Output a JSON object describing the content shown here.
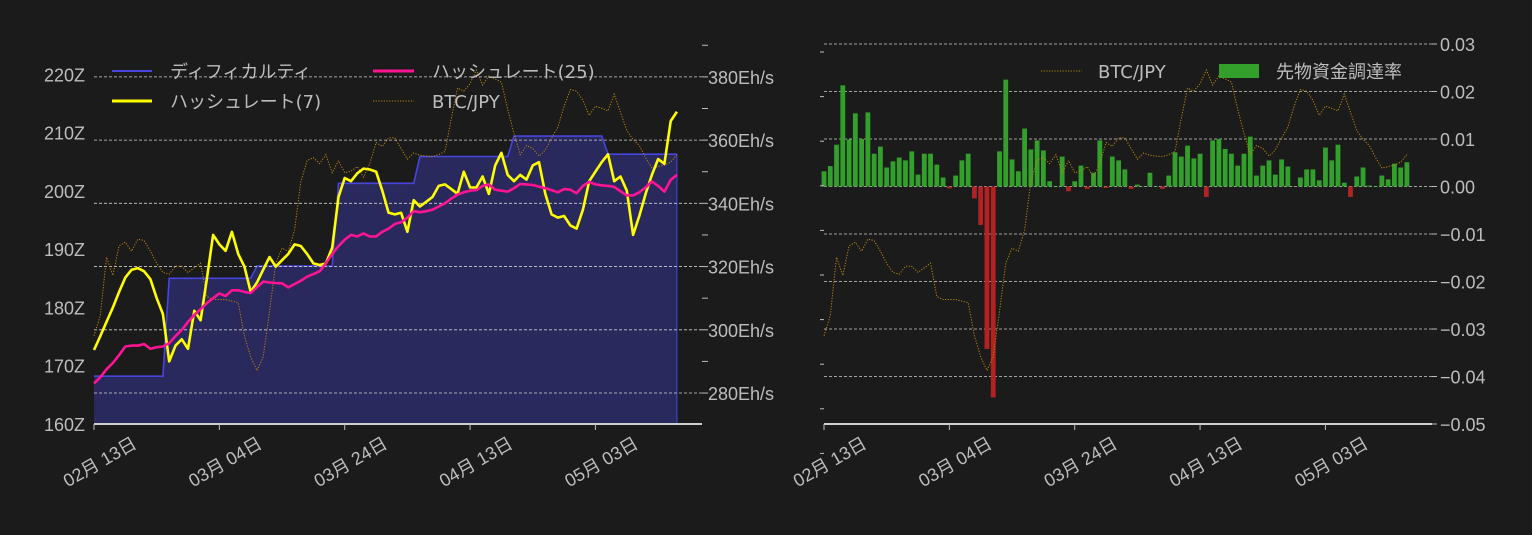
{
  "chart_data": [
    {
      "type": "line",
      "x": [
        "02-13",
        "02-14",
        "02-15",
        "02-16",
        "02-17",
        "02-18",
        "02-19",
        "02-20",
        "02-21",
        "02-22",
        "02-23",
        "02-24",
        "02-25",
        "02-26",
        "02-27",
        "02-28",
        "02-29",
        "03-01",
        "03-02",
        "03-03",
        "03-04",
        "03-05",
        "03-06",
        "03-07",
        "03-08",
        "03-09",
        "03-10",
        "03-11",
        "03-12",
        "03-13",
        "03-14",
        "03-15",
        "03-16",
        "03-17",
        "03-18",
        "03-19",
        "03-20",
        "03-21",
        "03-22",
        "03-23",
        "03-24",
        "03-25",
        "03-26",
        "03-27",
        "03-28",
        "03-29",
        "03-30",
        "03-31",
        "04-01",
        "04-02",
        "04-03",
        "04-04",
        "04-05",
        "04-06",
        "04-07",
        "04-08",
        "04-09",
        "04-10",
        "04-11",
        "04-12",
        "04-13",
        "04-14",
        "04-15",
        "04-16",
        "04-17",
        "04-18",
        "04-19",
        "04-20",
        "04-21",
        "04-22",
        "04-23",
        "04-24",
        "04-25",
        "04-26",
        "04-27",
        "04-28",
        "04-29",
        "04-30",
        "05-01",
        "05-02",
        "05-03",
        "05-04",
        "05-05",
        "05-06",
        "05-07",
        "05-08",
        "05-09",
        "05-10",
        "05-11",
        "05-12",
        "05-13",
        "05-14",
        "05-15",
        "05-16"
      ],
      "xlim": [
        "02-13",
        "05-20"
      ],
      "xticks": [
        {
          "date": "02-13",
          "label": "02月 13日"
        },
        {
          "date": "03-04",
          "label": "03月 04日"
        },
        {
          "date": "03-24",
          "label": "03月 24日"
        },
        {
          "date": "04-13",
          "label": "04月 13日"
        },
        {
          "date": "05-03",
          "label": "05月 03日"
        }
      ],
      "y_left": {
        "ylim": [
          160,
          225.2
        ],
        "ticks": [
          160,
          170,
          180,
          190,
          200,
          210,
          220
        ],
        "tick_labels": [
          "160Z",
          "170Z",
          "180Z",
          "190Z",
          "200Z",
          "210Z",
          "220Z"
        ]
      },
      "y_right": {
        "ylim": [
          270.2,
          390.4
        ],
        "ticks": [
          280,
          300,
          320,
          340,
          360,
          380
        ],
        "tick_labels": [
          "280Eh/s",
          "300Eh/s",
          "320Eh/s",
          "340Eh/s",
          "360Eh/s",
          "380Eh/s"
        ],
        "minor_step": 10
      },
      "y_hidden": {
        "ylim": [
          -17.2,
          108.6
        ]
      },
      "grid": "dashed, on right-axis ticks",
      "legend": "top-left, 2 columns",
      "series": [
        {
          "name": "ディフィカルティ",
          "axis": "left",
          "style": "filled-step",
          "color": "#4646dc",
          "fill": "#29295e",
          "values": [
            168.2,
            168.2,
            168.2,
            168.2,
            168.2,
            168.2,
            168.2,
            168.2,
            168.2,
            168.2,
            168.2,
            168.2,
            185,
            185,
            185,
            185,
            185,
            185,
            185,
            185,
            185,
            185,
            185,
            185,
            185,
            185,
            187.1,
            187.1,
            187.1,
            187.1,
            187.1,
            187.1,
            187.1,
            187.1,
            187.1,
            187.1,
            187.1,
            187.1,
            187.1,
            201.3,
            201.3,
            201.3,
            201.3,
            201.3,
            201.3,
            201.3,
            201.3,
            201.3,
            201.3,
            201.3,
            201.3,
            201.3,
            205.9,
            205.9,
            205.9,
            205.9,
            205.9,
            205.9,
            205.9,
            205.9,
            205.9,
            205.9,
            205.9,
            205.9,
            205.9,
            205.9,
            205.9,
            209.4,
            209.4,
            209.4,
            209.4,
            209.4,
            209.4,
            209.4,
            209.4,
            209.4,
            209.4,
            209.4,
            209.4,
            209.4,
            209.4,
            209.4,
            206.3,
            206.3,
            206.3,
            206.3,
            206.3,
            206.3,
            206.3,
            206.3,
            206.3,
            206.3,
            206.3,
            206.3
          ]
        },
        {
          "name": "ハッシュレート(25)",
          "axis": "right",
          "style": "line",
          "color": "#ff1493",
          "values": [
            283,
            285,
            287.5,
            289.5,
            292,
            294.7,
            295,
            295,
            295.5,
            294,
            294.5,
            294.7,
            295.8,
            298,
            300,
            302.5,
            304.7,
            306.5,
            308.4,
            310,
            311.5,
            310.7,
            312.5,
            312.5,
            312,
            311.6,
            313.5,
            315.2,
            315,
            314.8,
            314.7,
            313.4,
            314.5,
            315.5,
            316.8,
            317.6,
            318.5,
            321,
            324,
            326.5,
            328.5,
            330,
            329.5,
            330.5,
            329.5,
            329.5,
            331,
            332,
            333.5,
            334,
            335.5,
            337.5,
            337.2,
            337.5,
            338,
            339,
            340,
            341.5,
            342.8,
            343.5,
            344,
            344.2,
            345.5,
            346,
            344.3,
            344,
            343.7,
            344.8,
            346.1,
            346,
            345.8,
            345.3,
            344.8,
            344.2,
            343.5,
            344.5,
            344.3,
            343.2,
            345.5,
            346.8,
            346,
            345.7,
            345.5,
            345.2,
            343.8,
            342.5,
            342.5,
            343.5,
            345,
            346.9,
            345.5,
            343.7,
            347.4,
            349
          ]
        },
        {
          "name": "ハッシュレート(7)",
          "axis": "right",
          "style": "line",
          "color": "#ffff00",
          "values": [
            293.6,
            298,
            302.5,
            307,
            312,
            316.5,
            319,
            319.5,
            318.5,
            316,
            310,
            305,
            290,
            295,
            297,
            294,
            306,
            303,
            316,
            330,
            327,
            325,
            331,
            324,
            320,
            312,
            315,
            319,
            323,
            320,
            322,
            324,
            327,
            326.5,
            324,
            321,
            320.5,
            321,
            326,
            342,
            348,
            347,
            349.5,
            351,
            350.7,
            350,
            344,
            337,
            336.5,
            337,
            331,
            341,
            339,
            340.5,
            342,
            345.5,
            346,
            344.5,
            343,
            350,
            345,
            345,
            348.5,
            343,
            352,
            356,
            349,
            347,
            349,
            347.5,
            352,
            353,
            343,
            336.5,
            335.5,
            336,
            333,
            332,
            338,
            347,
            350,
            353,
            355.5,
            347,
            348.5,
            344,
            330,
            336,
            343,
            349,
            354,
            352.5,
            366,
            369
          ]
        },
        {
          "name": "BTC/JPY",
          "axis": "hidden",
          "style": "dotted",
          "color": "#b8860b",
          "values": [
            12,
            18.7,
            38,
            32,
            41.8,
            43,
            40,
            44,
            43.5,
            40,
            36,
            33,
            32.4,
            35,
            35,
            33,
            34.5,
            36,
            25,
            24,
            24,
            24,
            23.5,
            23,
            12,
            5,
            0.5,
            5,
            20,
            36,
            41,
            40,
            47,
            63,
            70,
            71,
            69,
            72,
            66,
            70,
            66,
            66.5,
            68,
            64.5,
            69,
            76,
            74.7,
            77.5,
            77.5,
            74,
            70.5,
            72.5,
            71.8,
            71.5,
            71.3,
            72,
            73,
            84,
            94,
            93,
            95.5,
            100,
            95,
            98,
            97,
            96,
            87,
            79,
            72,
            75,
            74,
            71.5,
            73.5,
            77.5,
            81,
            88,
            93.5,
            93,
            90,
            85,
            88,
            87.3,
            86.5,
            92,
            86,
            80,
            77,
            75,
            71,
            67.5,
            68,
            68.5,
            69.5,
            72
          ]
        }
      ]
    },
    {
      "type": "bar",
      "x": [
        "02-13",
        "02-14",
        "02-15",
        "02-16",
        "02-17",
        "02-18",
        "02-19",
        "02-20",
        "02-21",
        "02-22",
        "02-23",
        "02-24",
        "02-25",
        "02-26",
        "02-27",
        "02-28",
        "02-29",
        "03-01",
        "03-02",
        "03-03",
        "03-04",
        "03-05",
        "03-06",
        "03-07",
        "03-08",
        "03-09",
        "03-10",
        "03-11",
        "03-12",
        "03-13",
        "03-14",
        "03-15",
        "03-16",
        "03-17",
        "03-18",
        "03-19",
        "03-20",
        "03-21",
        "03-22",
        "03-23",
        "03-24",
        "03-25",
        "03-26",
        "03-27",
        "03-28",
        "03-29",
        "03-30",
        "03-31",
        "04-01",
        "04-02",
        "04-03",
        "04-04",
        "04-05",
        "04-06",
        "04-07",
        "04-08",
        "04-09",
        "04-10",
        "04-11",
        "04-12",
        "04-13",
        "04-14",
        "04-15",
        "04-16",
        "04-17",
        "04-18",
        "04-19",
        "04-20",
        "04-21",
        "04-22",
        "04-23",
        "04-24",
        "04-25",
        "04-26",
        "04-27",
        "04-28",
        "04-29",
        "04-30",
        "05-01",
        "05-02",
        "05-03",
        "05-04",
        "05-05",
        "05-06",
        "05-07",
        "05-08",
        "05-09",
        "05-10",
        "05-11",
        "05-12",
        "05-13",
        "05-14",
        "05-15",
        "05-16"
      ],
      "xlim": [
        "02-13",
        "05-20"
      ],
      "xticks": [
        {
          "date": "02-13",
          "label": "02月 13日"
        },
        {
          "date": "03-04",
          "label": "03月 04日"
        },
        {
          "date": "03-24",
          "label": "03月 24日"
        },
        {
          "date": "04-13",
          "label": "04月 13日"
        },
        {
          "date": "05-03",
          "label": "05月 03日"
        }
      ],
      "y_right": {
        "ylim": [
          -0.05,
          0.03
        ],
        "ticks": [
          0.03,
          0.02,
          0.01,
          0,
          -0.01,
          -0.02,
          -0.03,
          -0.04,
          -0.05
        ],
        "tick_labels": [
          "0.03",
          "0.02",
          "0.01",
          "0.00",
          "−0.01",
          "−0.02",
          "−0.03",
          "−0.04",
          "−0.05"
        ]
      },
      "y_hidden": {
        "ylim": [
          -17.2,
          108.6
        ]
      },
      "grid": "dashed horizontal",
      "legend": "top-right",
      "positive_color": "#33a02c",
      "negative_color": "#b22222",
      "series": [
        {
          "name": "先物資金調達率",
          "axis": "right",
          "style": "bar",
          "color": "#33a02c",
          "values": [
            0.0032,
            0.0043,
            0.0088,
            0.0213,
            0.0099,
            0.0154,
            0.01,
            0.0156,
            0.0069,
            0.0084,
            0.004,
            0.0053,
            0.0061,
            0.0055,
            0.0074,
            0.0025,
            0.0069,
            0.0069,
            0.0046,
            0.0019,
            -0.0004,
            0.0023,
            0.0055,
            0.0069,
            -0.0025,
            -0.0081,
            -0.0342,
            -0.0444,
            0.0074,
            0.0225,
            0.0057,
            0.0032,
            0.0122,
            0.0078,
            0.0097,
            0.0076,
            0.0011,
            0,
            0.0063,
            -0.001,
            0.0011,
            0.0044,
            -0.0005,
            0.0029,
            0.0097,
            -0.0003,
            0.0063,
            0.0055,
            0.0036,
            -0.0005,
            0.0004,
            0,
            0.0029,
            0,
            -0.0005,
            0.0023,
            0.0072,
            0.0063,
            0.0086,
            0.0059,
            0.0069,
            -0.0022,
            0.0097,
            0.01,
            0.0079,
            0.0069,
            0.0044,
            0.0069,
            0.0105,
            0.0023,
            0.0044,
            0.0055,
            0.0025,
            0.0057,
            0.0042,
            0,
            0.0019,
            0.0036,
            0.0036,
            0.0013,
            0.0082,
            0.0055,
            0.0088,
            0.0008,
            -0.0022,
            0.0021,
            0.004,
            0.0002,
            0,
            0.0023,
            0.0015,
            0.0048,
            0.004,
            0.0051
          ]
        },
        {
          "name": "BTC/JPY",
          "axis": "hidden",
          "style": "dotted",
          "color": "#b8860b",
          "values": [
            12,
            18.7,
            38,
            32,
            41.8,
            43,
            40,
            44,
            43.5,
            40,
            36,
            33,
            32.4,
            35,
            35,
            33,
            34.5,
            36,
            25,
            24,
            24,
            24,
            23.5,
            23,
            12,
            5,
            0.5,
            5,
            20,
            36,
            41,
            40,
            47,
            63,
            70,
            71,
            69,
            72,
            66,
            70,
            66,
            66.5,
            68,
            64.5,
            69,
            76,
            74.7,
            77.5,
            77.5,
            74,
            70.5,
            72.5,
            71.8,
            71.5,
            71.3,
            72,
            73,
            84,
            94,
            93,
            95.5,
            100,
            95,
            98,
            97,
            96,
            87,
            79,
            72,
            75,
            74,
            71.5,
            73.5,
            77.5,
            81,
            88,
            93.5,
            93,
            90,
            85,
            88,
            87.3,
            86.5,
            92,
            86,
            80,
            77,
            75,
            71,
            67.5,
            68,
            68.5,
            69.5,
            72
          ]
        }
      ]
    }
  ]
}
